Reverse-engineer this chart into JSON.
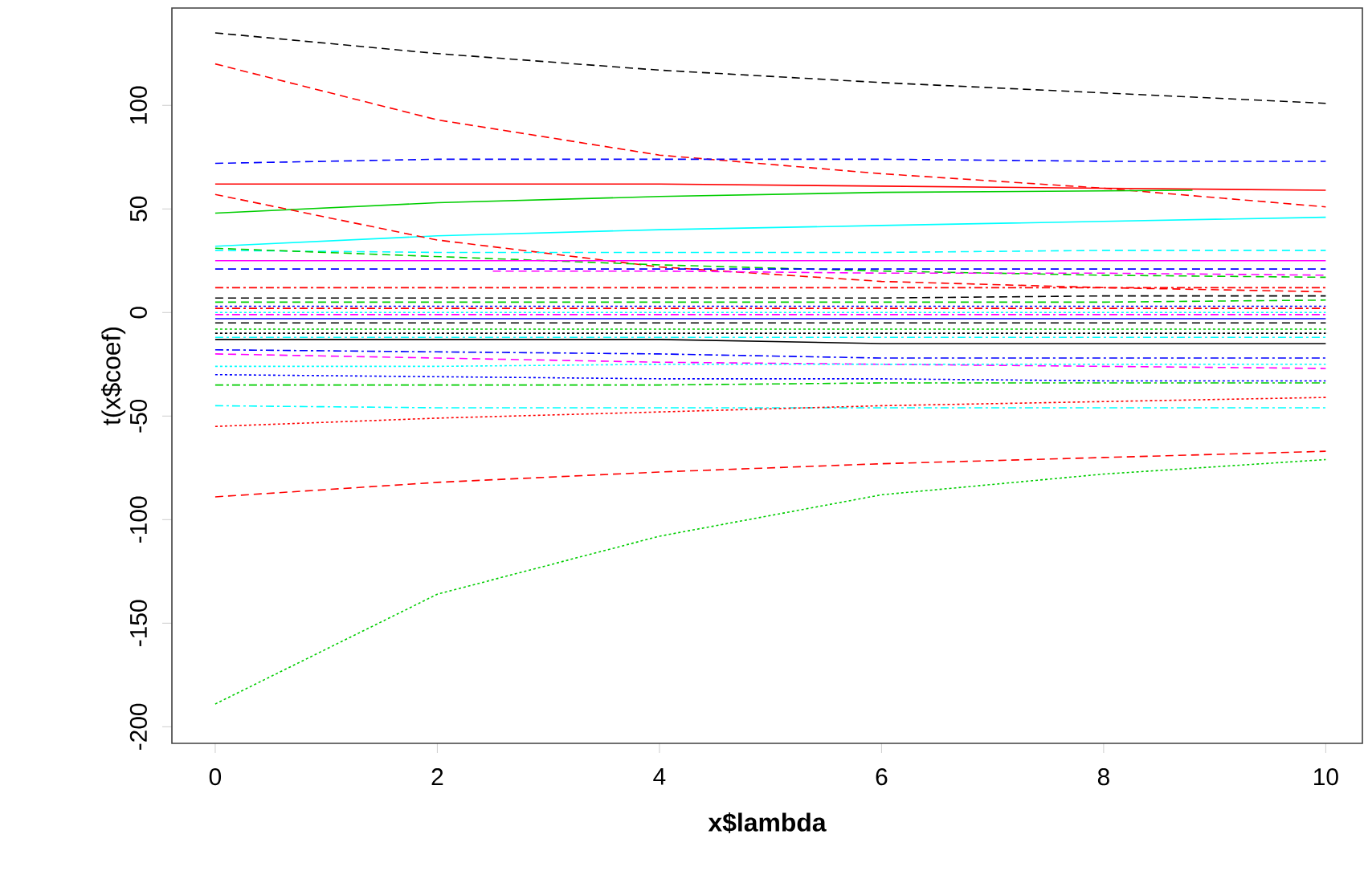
{
  "chart_data": {
    "type": "line",
    "xlabel": "x$lambda",
    "ylabel": "t(x$coef)",
    "xlim": [
      -0.39,
      10.33
    ],
    "ylim": [
      -208,
      147
    ],
    "xticks": [
      0,
      2,
      4,
      6,
      8,
      10
    ],
    "yticks": [
      -200,
      -150,
      -100,
      -50,
      0,
      50,
      100
    ],
    "series": [
      {
        "color": "#000000",
        "line_style": "dashed",
        "x": [
          0,
          2,
          4,
          6,
          8,
          10
        ],
        "values": [
          135,
          125,
          117,
          111,
          106,
          101
        ]
      },
      {
        "color": "#ff0000",
        "line_style": "dashed",
        "x": [
          0,
          2,
          4,
          6,
          8,
          10
        ],
        "values": [
          120,
          93,
          76,
          67,
          60,
          51
        ]
      },
      {
        "color": "#0000ff",
        "line_style": "dashed",
        "x": [
          0,
          2,
          4,
          6,
          8,
          10
        ],
        "values": [
          72,
          74,
          74,
          74,
          73,
          73
        ]
      },
      {
        "color": "#ff0000",
        "line_style": "solid",
        "x": [
          0,
          2,
          4,
          6,
          8,
          10
        ],
        "values": [
          62,
          62,
          62,
          61,
          60,
          59
        ]
      },
      {
        "color": "#00cd00",
        "line_style": "solid",
        "x": [
          0,
          2,
          4,
          6,
          8.8
        ],
        "values": [
          48,
          53,
          56,
          58,
          59
        ]
      },
      {
        "color": "#00ffff",
        "line_style": "solid",
        "x": [
          0,
          2,
          4,
          6,
          8,
          10
        ],
        "values": [
          32,
          37,
          40,
          42,
          44,
          46
        ]
      },
      {
        "color": "#ff0000",
        "line_style": "dashed",
        "x": [
          0,
          2,
          4,
          6,
          8,
          10
        ],
        "values": [
          57,
          35,
          22,
          15,
          12,
          10
        ]
      },
      {
        "color": "#00ffff",
        "line_style": "dashed",
        "x": [
          0,
          2,
          4,
          6,
          8,
          10
        ],
        "values": [
          30,
          29,
          29,
          29,
          30,
          30
        ]
      },
      {
        "color": "#00cd00",
        "line_style": "dashed",
        "x": [
          0,
          2,
          4,
          6,
          8,
          10
        ],
        "values": [
          31,
          27,
          23,
          20,
          18,
          17
        ]
      },
      {
        "color": "#ff00ff",
        "line_style": "solid",
        "x": [
          0,
          2,
          4,
          6,
          8,
          10
        ],
        "values": [
          25,
          25,
          25,
          25,
          25,
          25
        ]
      },
      {
        "color": "#0000ff",
        "line_style": "dashed",
        "x": [
          0,
          2,
          4,
          6,
          8,
          10
        ],
        "values": [
          21,
          21,
          21,
          21,
          21,
          21
        ]
      },
      {
        "color": "#ff00ff",
        "line_style": "dashed",
        "x": [
          2.5,
          4,
          6,
          8,
          10
        ],
        "values": [
          20,
          20,
          19,
          19,
          18
        ]
      },
      {
        "color": "#ff0000",
        "line_style": "dashdot",
        "x": [
          0,
          2,
          4,
          6,
          8,
          10
        ],
        "values": [
          12,
          12,
          12,
          12,
          12,
          12
        ]
      },
      {
        "color": "#000000",
        "line_style": "dashed",
        "x": [
          0,
          2,
          4,
          6,
          8,
          10
        ],
        "values": [
          7,
          7,
          7,
          7,
          8,
          8
        ]
      },
      {
        "color": "#00cd00",
        "line_style": "dashed",
        "x": [
          0,
          2,
          4,
          6,
          8,
          10
        ],
        "values": [
          5,
          5,
          5,
          5,
          5,
          6
        ]
      },
      {
        "color": "#0000ff",
        "line_style": "dotted",
        "x": [
          0,
          2,
          4,
          6,
          8,
          10
        ],
        "values": [
          3,
          3,
          3,
          3,
          3,
          3
        ]
      },
      {
        "color": "#ff0000",
        "line_style": "dashdot",
        "x": [
          0,
          2,
          4,
          6,
          8,
          10
        ],
        "values": [
          2,
          2,
          2,
          2,
          2,
          2
        ]
      },
      {
        "color": "#00ffff",
        "line_style": "dotted",
        "x": [
          0,
          2,
          4,
          6,
          8,
          10
        ],
        "values": [
          0,
          0,
          0,
          0,
          0,
          0
        ]
      },
      {
        "color": "#ff00ff",
        "line_style": "dashdot",
        "x": [
          0,
          2,
          4,
          6,
          8,
          10
        ],
        "values": [
          -1,
          -1,
          -1,
          -1,
          -1,
          -1
        ]
      },
      {
        "color": "#0000ff",
        "line_style": "solid",
        "x": [
          0,
          2,
          4,
          6,
          8,
          10
        ],
        "values": [
          -3,
          -3,
          -3,
          -3,
          -3,
          -3
        ]
      },
      {
        "color": "#000000",
        "line_style": "dashed",
        "x": [
          0,
          2,
          4,
          6,
          8,
          10
        ],
        "values": [
          -5,
          -5,
          -5,
          -5,
          -5,
          -5
        ]
      },
      {
        "color": "#00cd00",
        "line_style": "dotted",
        "x": [
          0,
          2,
          4,
          6,
          8,
          10
        ],
        "values": [
          -8,
          -8,
          -8,
          -8,
          -8,
          -8
        ]
      },
      {
        "color": "#000000",
        "line_style": "dotted",
        "x": [
          0,
          2,
          4,
          6,
          8,
          10
        ],
        "values": [
          -10,
          -10,
          -10,
          -10,
          -10,
          -10
        ]
      },
      {
        "color": "#00ffff",
        "line_style": "dashdot",
        "x": [
          0,
          2,
          4,
          6,
          8,
          10
        ],
        "values": [
          -12,
          -12,
          -12,
          -12,
          -12,
          -12
        ]
      },
      {
        "color": "#000000",
        "line_style": "solid",
        "x": [
          0,
          2,
          4,
          6,
          8,
          10
        ],
        "values": [
          -13,
          -13,
          -13,
          -15,
          -15,
          -15
        ]
      },
      {
        "color": "#0000ff",
        "line_style": "dashdot",
        "x": [
          0,
          2,
          4,
          6,
          8,
          10
        ],
        "values": [
          -18,
          -19,
          -20,
          -22,
          -22,
          -22
        ]
      },
      {
        "color": "#ff00ff",
        "line_style": "dashed",
        "x": [
          0,
          2,
          4,
          6,
          8,
          10
        ],
        "values": [
          -20,
          -22,
          -24,
          -25,
          -26,
          -27
        ]
      },
      {
        "color": "#00ffff",
        "line_style": "dotted",
        "x": [
          0,
          2,
          4,
          6,
          8,
          10
        ],
        "values": [
          -26,
          -26,
          -25,
          -25,
          -25,
          -25
        ]
      },
      {
        "color": "#0000ff",
        "line_style": "dotted",
        "x": [
          0,
          2,
          4,
          6,
          8,
          10
        ],
        "values": [
          -30,
          -31,
          -32,
          -32,
          -33,
          -33
        ]
      },
      {
        "color": "#00cd00",
        "line_style": "dashdot",
        "x": [
          0,
          2,
          4,
          6,
          8,
          10
        ],
        "values": [
          -35,
          -35,
          -35,
          -34,
          -34,
          -34
        ]
      },
      {
        "color": "#00ffff",
        "line_style": "dashdot",
        "x": [
          0,
          2,
          4,
          6,
          8,
          10
        ],
        "values": [
          -45,
          -46,
          -46,
          -46,
          -46,
          -46
        ]
      },
      {
        "color": "#ff0000",
        "line_style": "dotted",
        "x": [
          0,
          2,
          4,
          6,
          8,
          10
        ],
        "values": [
          -55,
          -51,
          -48,
          -45,
          -43,
          -41
        ]
      },
      {
        "color": "#ff0000",
        "line_style": "dashed",
        "x": [
          0,
          2,
          4,
          6,
          8,
          10
        ],
        "values": [
          -89,
          -82,
          -77,
          -73,
          -70,
          -67
        ]
      },
      {
        "color": "#00cd00",
        "line_style": "dotted",
        "x": [
          0,
          2,
          4,
          6,
          8,
          10
        ],
        "values": [
          -189,
          -136,
          -108,
          -88,
          -78,
          -71
        ]
      }
    ]
  }
}
